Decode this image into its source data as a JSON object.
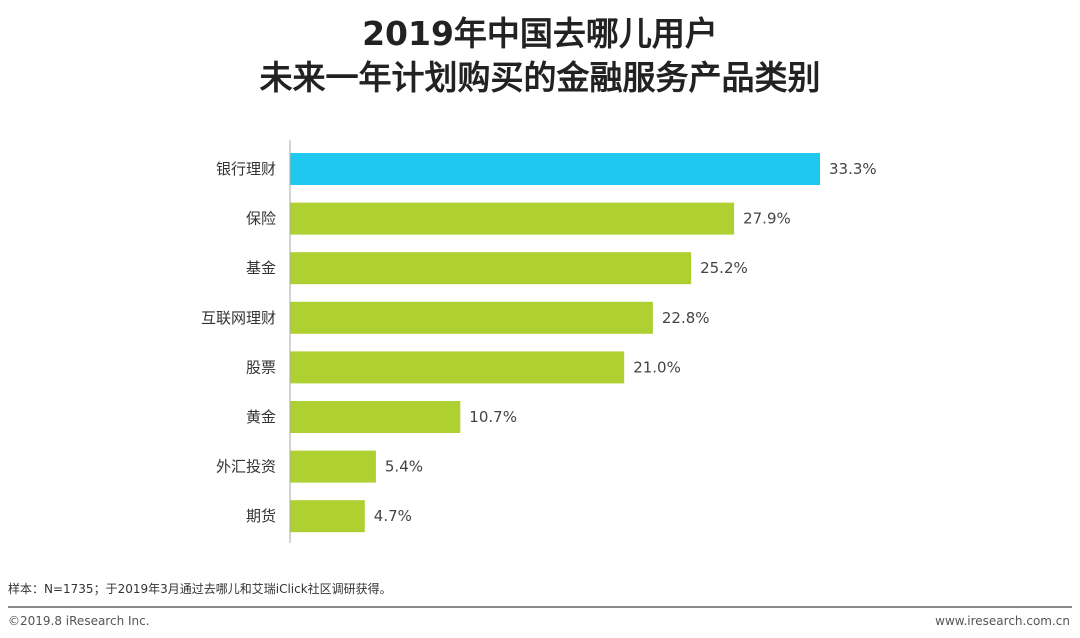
{
  "chart_data": {
    "type": "bar",
    "orientation": "horizontal",
    "title": [
      "2019年中国去哪儿用户",
      "未来一年计划购买的金融服务产品类别"
    ],
    "categories": [
      "银行理财",
      "保险",
      "基金",
      "互联网理财",
      "股票",
      "黄金",
      "外汇投资",
      "期货"
    ],
    "values": [
      33.3,
      27.9,
      25.2,
      22.8,
      21.0,
      10.7,
      5.4,
      4.7
    ],
    "value_labels": [
      "33.3%",
      "27.9%",
      "25.2%",
      "22.8%",
      "21.0%",
      "10.7%",
      "5.4%",
      "4.7%"
    ],
    "unit": "%",
    "xlim": [
      0,
      35
    ],
    "highlight_index": 0,
    "colors": {
      "highlight": "#1fc8ee",
      "default": "#aed031",
      "axis": "#aaaaaa"
    },
    "xlabel": "",
    "ylabel": ""
  },
  "footer": {
    "note": "样本：N=1735；于2019年3月通过去哪儿和艾瑞iClick社区调研获得。",
    "copyright": "©2019.8 iResearch Inc.",
    "website": "www.iresearch.com.cn"
  }
}
